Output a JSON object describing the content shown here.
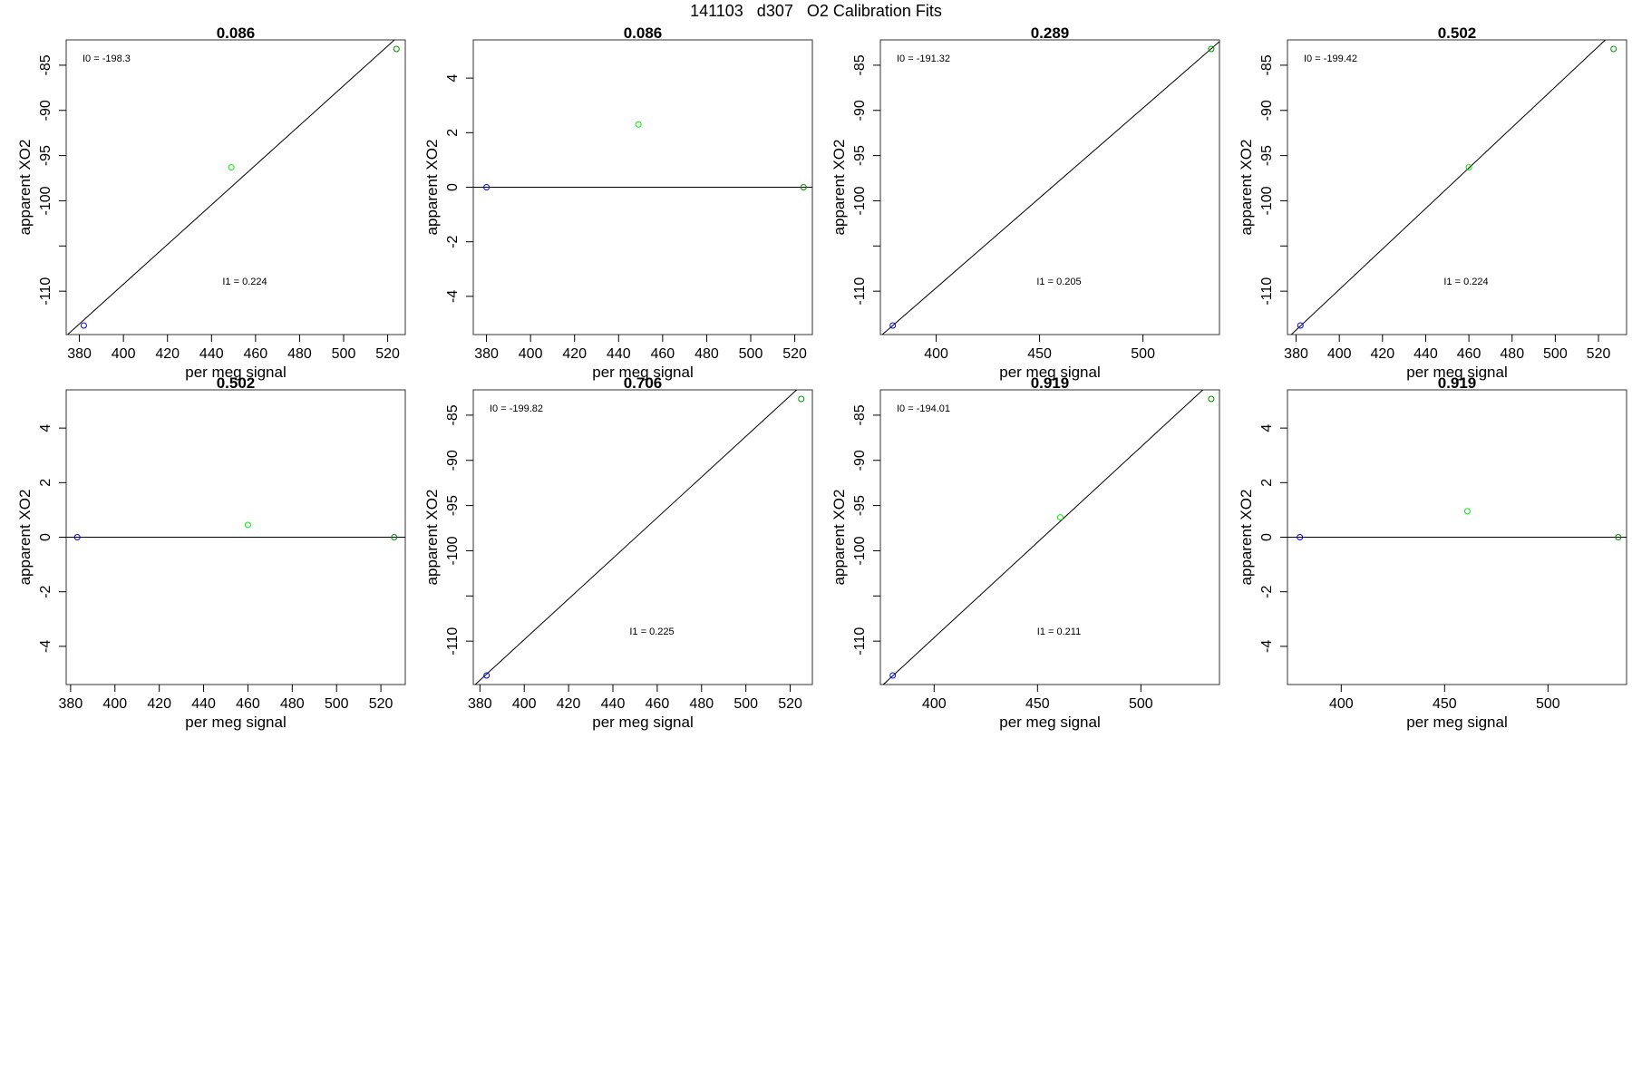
{
  "main_title": "141103   d307   O2 Calibration Fits",
  "chart_data": [
    {
      "type": "scatter",
      "title": "0.086",
      "xlabel": "per meg signal",
      "ylabel": "apparent XO2",
      "xlim": [
        374,
        528
      ],
      "ylim": [
        -114.8,
        -82.2
      ],
      "xticks": [
        380,
        400,
        420,
        440,
        460,
        480,
        500,
        520
      ],
      "yticks": [
        -110,
        -105,
        -100,
        -95,
        -90,
        -85
      ],
      "ytick_labels": [
        "-110",
        "",
        "-100",
        "-95",
        "-90",
        "-85"
      ],
      "points": [
        {
          "x": 382,
          "y": -113.8,
          "color": "#0000ff"
        },
        {
          "x": 449,
          "y": -96.3,
          "color": "#00ee00"
        },
        {
          "x": 524,
          "y": -83.2,
          "color": "#009000"
        }
      ],
      "fit_line": {
        "x": [
          374,
          528
        ],
        "y": [
          -114.94,
          -81.12
        ]
      },
      "annotations": [
        "I0 =  -198.3",
        "I1 =  0.224"
      ]
    },
    {
      "type": "scatter",
      "title": "0.086",
      "xlabel": "per meg signal",
      "ylabel": "apparent XO2",
      "xlim": [
        374,
        528
      ],
      "ylim": [
        -5.4,
        5.4
      ],
      "xticks": [
        380,
        400,
        420,
        440,
        460,
        480,
        500,
        520
      ],
      "yticks": [
        -4,
        -2,
        0,
        2,
        4
      ],
      "ytick_labels": [
        "-4",
        "-2",
        "0",
        "2",
        "4"
      ],
      "points": [
        {
          "x": 380,
          "y": 0,
          "color": "#0000ff"
        },
        {
          "x": 449,
          "y": 2.3,
          "color": "#00ee00"
        },
        {
          "x": 524,
          "y": 0,
          "color": "#009000"
        }
      ],
      "fit_line": {
        "x": [
          374,
          528
        ],
        "y": [
          0,
          0
        ]
      },
      "annotations": []
    },
    {
      "type": "scatter",
      "title": "0.289",
      "xlabel": "per meg signal",
      "ylabel": "apparent XO2",
      "xlim": [
        373,
        537
      ],
      "ylim": [
        -114.8,
        -82.2
      ],
      "xticks": [
        400,
        450,
        500
      ],
      "yticks": [
        -110,
        -105,
        -100,
        -95,
        -90,
        -85
      ],
      "ytick_labels": [
        "-110",
        "",
        "-100",
        "-95",
        "-90",
        "-85"
      ],
      "points": [
        {
          "x": 379,
          "y": -113.8,
          "color": "#0000ff"
        },
        {
          "x": 533,
          "y": -83.2,
          "color": "#009000"
        }
      ],
      "fit_line": {
        "x": [
          373,
          537
        ],
        "y": [
          -114.99,
          -82.39
        ]
      },
      "annotations": [
        "I0 =  -191.32",
        "I1 =  0.205"
      ]
    },
    {
      "type": "scatter",
      "title": "0.502",
      "xlabel": "per meg signal",
      "ylabel": "apparent XO2",
      "xlim": [
        376,
        533
      ],
      "ylim": [
        -114.8,
        -82.2
      ],
      "xticks": [
        380,
        400,
        420,
        440,
        460,
        480,
        500,
        520
      ],
      "yticks": [
        -110,
        -105,
        -100,
        -95,
        -90,
        -85
      ],
      "ytick_labels": [
        "-110",
        "",
        "-100",
        "-95",
        "-90",
        "-85"
      ],
      "points": [
        {
          "x": 382,
          "y": -113.8,
          "color": "#0000ff"
        },
        {
          "x": 460,
          "y": -96.3,
          "color": "#00ee00"
        },
        {
          "x": 527,
          "y": -83.2,
          "color": "#009000"
        }
      ],
      "fit_line": {
        "x": [
          376,
          533
        ],
        "y": [
          -115.2,
          -80.0
        ]
      },
      "annotations": [
        "I0 =  -199.42",
        "I1 =  0.224"
      ]
    },
    {
      "type": "scatter",
      "title": "0.502",
      "xlabel": "per meg signal",
      "ylabel": "apparent XO2",
      "xlim": [
        378,
        531
      ],
      "ylim": [
        -5.4,
        5.4
      ],
      "xticks": [
        380,
        400,
        420,
        440,
        460,
        480,
        500,
        520
      ],
      "yticks": [
        -4,
        -2,
        0,
        2,
        4
      ],
      "ytick_labels": [
        "-4",
        "-2",
        "0",
        "2",
        "4"
      ],
      "points": [
        {
          "x": 383,
          "y": 0,
          "color": "#0000ff"
        },
        {
          "x": 460,
          "y": 0.45,
          "color": "#00ee00"
        },
        {
          "x": 526,
          "y": 0,
          "color": "#009000"
        }
      ],
      "fit_line": {
        "x": [
          378,
          531
        ],
        "y": [
          0,
          0
        ]
      },
      "annotations": []
    },
    {
      "type": "scatter",
      "title": "0.706",
      "xlabel": "per meg signal",
      "ylabel": "apparent XO2",
      "xlim": [
        377,
        530
      ],
      "ylim": [
        -114.8,
        -82.2
      ],
      "xticks": [
        380,
        400,
        420,
        440,
        460,
        480,
        500,
        520
      ],
      "yticks": [
        -110,
        -105,
        -100,
        -95,
        -90,
        -85
      ],
      "ytick_labels": [
        "-110",
        "",
        "-100",
        "-95",
        "-90",
        "-85"
      ],
      "points": [
        {
          "x": 383,
          "y": -113.8,
          "color": "#0000ff"
        },
        {
          "x": 525,
          "y": -83.2,
          "color": "#009000"
        }
      ],
      "fit_line": {
        "x": [
          377,
          530
        ],
        "y": [
          -115.0,
          -80.6
        ]
      },
      "annotations": [
        "I0 =  -199.82",
        "I1 =  0.225"
      ]
    },
    {
      "type": "scatter",
      "title": "0.919",
      "xlabel": "per meg signal",
      "ylabel": "apparent XO2",
      "xlim": [
        374,
        538
      ],
      "ylim": [
        -114.8,
        -82.2
      ],
      "xticks": [
        400,
        450,
        500
      ],
      "yticks": [
        -110,
        -105,
        -100,
        -95,
        -90,
        -85
      ],
      "ytick_labels": [
        "-110",
        "",
        "-100",
        "-95",
        "-90",
        "-85"
      ],
      "points": [
        {
          "x": 380,
          "y": -113.8,
          "color": "#0000ff"
        },
        {
          "x": 461,
          "y": -96.3,
          "color": "#00ee00"
        },
        {
          "x": 534,
          "y": -83.2,
          "color": "#009000"
        }
      ],
      "fit_line": {
        "x": [
          374,
          538
        ],
        "y": [
          -115.1,
          -80.5
        ]
      },
      "annotations": [
        "I0 =  -194.01",
        "I1 =  0.211"
      ]
    },
    {
      "type": "scatter",
      "title": "0.919",
      "xlabel": "per meg signal",
      "ylabel": "apparent XO2",
      "xlim": [
        374,
        538
      ],
      "ylim": [
        -5.4,
        5.4
      ],
      "xticks": [
        400,
        450,
        500
      ],
      "yticks": [
        -4,
        -2,
        0,
        2,
        4
      ],
      "ytick_labels": [
        "-4",
        "-2",
        "0",
        "2",
        "4"
      ],
      "points": [
        {
          "x": 380,
          "y": 0,
          "color": "#0000ff"
        },
        {
          "x": 461,
          "y": 0.95,
          "color": "#00ee00"
        },
        {
          "x": 534,
          "y": 0,
          "color": "#009000"
        }
      ],
      "fit_line": {
        "x": [
          374,
          538
        ],
        "y": [
          0,
          0
        ]
      },
      "annotations": []
    }
  ]
}
